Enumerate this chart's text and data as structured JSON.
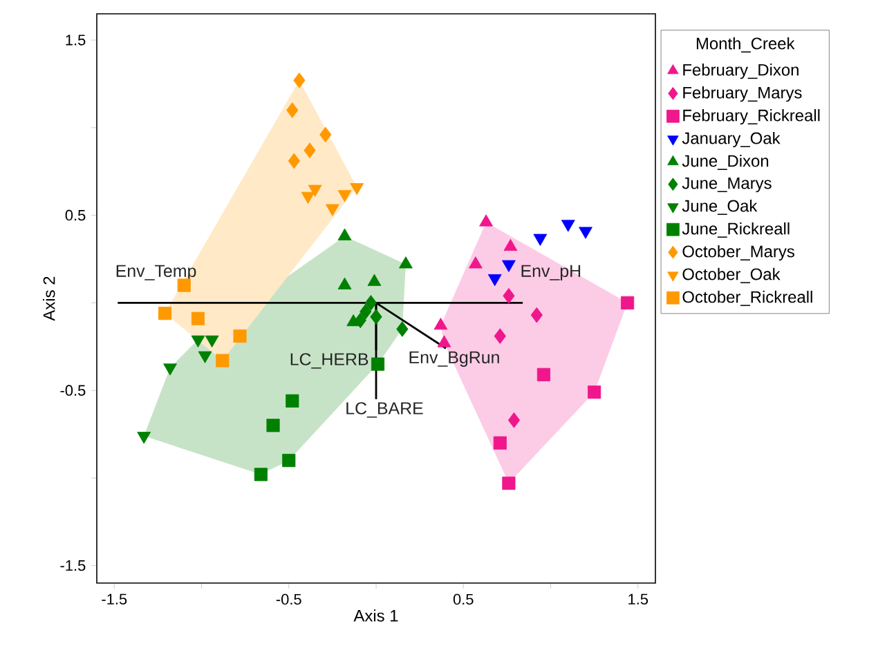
{
  "chart_data": {
    "type": "scatter",
    "xlabel": "Axis 1",
    "ylabel": "Axis 2",
    "legend_title": "Month_Creek",
    "legend": "right",
    "xlim": [
      -1.6,
      1.6
    ],
    "ylim": [
      -1.6,
      1.65
    ],
    "xticks": [
      -1.5,
      {
        "value": -1,
        "label": null
      },
      -0.5,
      {
        "value": 0,
        "label": null
      },
      0.5,
      {
        "value": 1,
        "label": null
      },
      1.5
    ],
    "yticks": [
      -1.5,
      {
        "value": -1,
        "label": null
      },
      -0.5,
      {
        "value": 0,
        "label": null
      },
      0.5,
      {
        "value": 1,
        "label": null
      },
      1.5
    ],
    "series": [
      {
        "name": "February_Dixon",
        "color": "#f0168c",
        "marker": "triangle",
        "x": [
          0.63,
          0.77,
          0.57,
          0.37,
          0.39
        ],
        "values": [
          0.46,
          0.32,
          0.22,
          -0.13,
          -0.23
        ]
      },
      {
        "name": "February_Marys",
        "color": "#f0168c",
        "marker": "diamond",
        "x": [
          0.76,
          0.92,
          0.71,
          0.79
        ],
        "values": [
          0.04,
          -0.07,
          -0.19,
          -0.67
        ]
      },
      {
        "name": "February_Rickreall",
        "color": "#f0168c",
        "marker": "square",
        "x": [
          1.44,
          0.96,
          1.25,
          0.71,
          0.76
        ],
        "values": [
          0.0,
          -0.41,
          -0.51,
          -0.8,
          -1.03
        ]
      },
      {
        "name": "January_Oak",
        "color": "#0000ff",
        "marker": "triangle-down",
        "x": [
          0.94,
          1.1,
          1.2,
          0.76,
          0.68
        ],
        "values": [
          0.37,
          0.45,
          0.41,
          0.22,
          0.14
        ]
      },
      {
        "name": "June_Dixon",
        "color": "#008000",
        "marker": "triangle",
        "x": [
          -0.18,
          0.17,
          -0.18,
          -0.01,
          -0.13
        ],
        "values": [
          0.38,
          0.22,
          0.1,
          0.12,
          -0.11
        ]
      },
      {
        "name": "June_Marys",
        "color": "#008000",
        "marker": "diamond",
        "x": [
          -0.06,
          0.15,
          -0.03,
          0.0,
          -0.09
        ],
        "values": [
          -0.05,
          -0.15,
          0.0,
          -0.08,
          -0.1
        ]
      },
      {
        "name": "June_Oak",
        "color": "#008000",
        "marker": "triangle-down",
        "x": [
          -1.33,
          -1.18,
          -1.02,
          -0.98,
          -0.94
        ],
        "values": [
          -0.76,
          -0.37,
          -0.21,
          -0.3,
          -0.21
        ]
      },
      {
        "name": "June_Rickreall",
        "color": "#008000",
        "marker": "square",
        "x": [
          0.01,
          -0.48,
          -0.59,
          -0.66,
          -0.5
        ],
        "values": [
          -0.35,
          -0.56,
          -0.7,
          -0.98,
          -0.9
        ]
      },
      {
        "name": "October_Marys",
        "color": "#ff9900",
        "marker": "diamond",
        "x": [
          -0.44,
          -0.48,
          -0.29,
          -0.47,
          -0.38
        ],
        "values": [
          1.27,
          1.1,
          0.96,
          0.81,
          0.87
        ]
      },
      {
        "name": "October_Oak",
        "color": "#ff9900",
        "marker": "triangle-down",
        "x": [
          -0.39,
          -0.35,
          -0.25,
          -0.18,
          -0.11
        ],
        "values": [
          0.61,
          0.65,
          0.54,
          0.62,
          0.66
        ]
      },
      {
        "name": "October_Rickreall",
        "color": "#ff9900",
        "marker": "square",
        "x": [
          -1.1,
          -1.21,
          -1.02,
          -0.88,
          -0.78
        ],
        "values": [
          0.1,
          -0.06,
          -0.09,
          -0.33,
          -0.19
        ]
      },
      {
        "name": "Env_Temp",
        "type": "line",
        "color": "#000000",
        "x": [
          0,
          -1.48
        ],
        "values": [
          0,
          0
        ]
      },
      {
        "name": "Env_pH",
        "type": "line",
        "color": "#000000",
        "x": [
          0,
          0.84
        ],
        "values": [
          0,
          0
        ]
      },
      {
        "name": "Env_BgRun",
        "type": "line",
        "color": "#000000",
        "x": [
          0,
          0.4
        ],
        "values": [
          0,
          -0.26
        ]
      },
      {
        "name": "LC_HERB",
        "type": "line",
        "color": "#000000",
        "x": [
          0,
          0
        ],
        "values": [
          0,
          -0.27
        ]
      },
      {
        "name": "LC_BARE",
        "type": "line",
        "color": "#000000",
        "x": [
          0,
          0
        ],
        "values": [
          0,
          -0.55
        ]
      }
    ]
  }
}
